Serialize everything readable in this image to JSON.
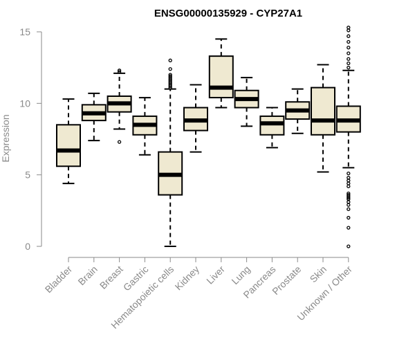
{
  "chart_data": {
    "type": "box",
    "title": "ENSG00000135929 - CYP27A1",
    "ylabel": "Expression",
    "xlabel": "",
    "ylim": [
      0,
      15
    ],
    "yticks": [
      0,
      5,
      10,
      15
    ],
    "grid": false,
    "colors": {
      "box_fill": "#efe9d1",
      "box_stroke": "#000000",
      "axis": "#8a8a8a",
      "title": "#000000"
    },
    "categories": [
      "Bladder",
      "Brain",
      "Breast",
      "Gastric",
      "Hematopoietic cells",
      "Kidney",
      "Liver",
      "Lung",
      "Pancreas",
      "Prostate",
      "Skin",
      "Unknown / Other"
    ],
    "boxes": [
      {
        "category": "Bladder",
        "whisker_low": 4.4,
        "q1": 5.6,
        "median": 6.7,
        "q3": 8.5,
        "whisker_high": 10.3,
        "outliers": []
      },
      {
        "category": "Brain",
        "whisker_low": 7.4,
        "q1": 8.8,
        "median": 9.3,
        "q3": 9.9,
        "whisker_high": 10.7,
        "outliers": []
      },
      {
        "category": "Breast",
        "whisker_low": 8.2,
        "q1": 9.4,
        "median": 10.0,
        "q3": 10.5,
        "whisker_high": 12.1,
        "outliers": [
          7.3,
          12.2,
          12.3
        ]
      },
      {
        "category": "Gastric",
        "whisker_low": 6.4,
        "q1": 7.8,
        "median": 8.5,
        "q3": 9.1,
        "whisker_high": 10.4,
        "outliers": []
      },
      {
        "category": "Hematopoietic cells",
        "whisker_low": 0.0,
        "q1": 3.6,
        "median": 5.0,
        "q3": 6.6,
        "whisker_high": 11.0,
        "outliers": [
          11.1,
          11.2,
          11.3,
          11.4,
          11.5,
          11.6,
          11.7,
          11.8,
          11.9,
          12.0,
          12.4,
          13.0
        ]
      },
      {
        "category": "Kidney",
        "whisker_low": 6.6,
        "q1": 8.1,
        "median": 8.8,
        "q3": 9.7,
        "whisker_high": 11.3,
        "outliers": []
      },
      {
        "category": "Liver",
        "whisker_low": 9.7,
        "q1": 10.4,
        "median": 11.1,
        "q3": 13.3,
        "whisker_high": 14.5,
        "outliers": []
      },
      {
        "category": "Lung",
        "whisker_low": 8.4,
        "q1": 9.7,
        "median": 10.3,
        "q3": 10.9,
        "whisker_high": 11.8,
        "outliers": []
      },
      {
        "category": "Pancreas",
        "whisker_low": 6.9,
        "q1": 7.8,
        "median": 8.6,
        "q3": 9.1,
        "whisker_high": 9.7,
        "outliers": []
      },
      {
        "category": "Prostate",
        "whisker_low": 7.9,
        "q1": 8.9,
        "median": 9.5,
        "q3": 10.1,
        "whisker_high": 11.0,
        "outliers": []
      },
      {
        "category": "Skin",
        "whisker_low": 5.2,
        "q1": 7.8,
        "median": 8.8,
        "q3": 11.1,
        "whisker_high": 12.7,
        "outliers": []
      },
      {
        "category": "Unknown / Other",
        "whisker_low": 5.5,
        "q1": 8.0,
        "median": 8.8,
        "q3": 9.8,
        "whisker_high": 12.3,
        "outliers": [
          0.0,
          1.3,
          2.0,
          2.6,
          2.9,
          3.1,
          3.3,
          3.4,
          3.5,
          3.6,
          3.7,
          4.2,
          4.4,
          4.6,
          4.8,
          5.1,
          12.5,
          12.8,
          13.1,
          13.5,
          13.9,
          14.3,
          14.7,
          15.1,
          15.3
        ]
      }
    ]
  }
}
